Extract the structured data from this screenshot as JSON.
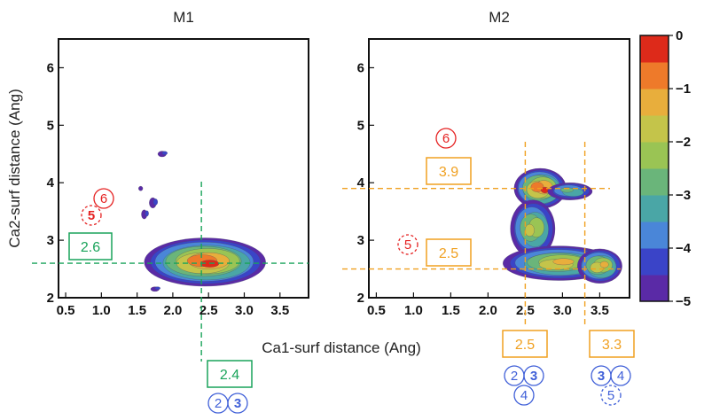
{
  "colors": {
    "green": "#19a35a",
    "orange": "#f0a020",
    "red": "#e52222",
    "blue": "#3f5fd8",
    "scale": [
      "#5a2aa6",
      "#3a44c8",
      "#4a86d8",
      "#4aa6a6",
      "#6ab57a",
      "#9ac454",
      "#c4c44a",
      "#e8ae3c",
      "#ee7a2a",
      "#dd2a1a"
    ]
  },
  "chart_data": [
    {
      "type": "heatmap",
      "title": "M1",
      "xlabel": "Ca1-surf distance (Ang)",
      "ylabel": "Ca2-surf distance (Ang)",
      "xlim": [
        0.4,
        3.9
      ],
      "ylim": [
        2.0,
        6.5
      ],
      "xticks": [
        "0.5",
        "1.0",
        "1.5",
        "2.0",
        "2.5",
        "3.0",
        "3.5"
      ],
      "yticks": [
        "2",
        "3",
        "4",
        "5",
        "6"
      ],
      "regions": [
        {
          "cx": 2.45,
          "cy": 2.62,
          "rx": 0.85,
          "ry": 0.42,
          "peak": 0
        },
        {
          "cx": 1.85,
          "cy": 4.5,
          "rx": 0.06,
          "ry": 0.05,
          "peak": -4.5
        },
        {
          "cx": 1.72,
          "cy": 3.65,
          "rx": 0.05,
          "ry": 0.09,
          "peak": -4.5
        },
        {
          "cx": 1.6,
          "cy": 3.45,
          "rx": 0.04,
          "ry": 0.08,
          "peak": -4.5
        },
        {
          "cx": 1.55,
          "cy": 3.9,
          "rx": 0.03,
          "ry": 0.04,
          "peak": -4.8
        },
        {
          "cx": 1.75,
          "cy": 2.15,
          "rx": 0.06,
          "ry": 0.04,
          "peak": -4.5
        }
      ],
      "guides": {
        "x": 2.4,
        "y": 2.6
      },
      "annotations": [
        {
          "text": "2.6",
          "color": "green",
          "axis": "y"
        },
        {
          "text": "2.4",
          "color": "green",
          "axis": "x"
        },
        {
          "text": "6",
          "color": "red",
          "style": "solid"
        },
        {
          "text": "5",
          "color": "red",
          "style": "dashed",
          "bold": true
        },
        {
          "text": "2",
          "color": "blue"
        },
        {
          "text": "3",
          "color": "blue",
          "bold": true
        }
      ]
    },
    {
      "type": "heatmap",
      "title": "M2",
      "xlim": [
        0.4,
        3.9
      ],
      "ylim": [
        2.0,
        6.5
      ],
      "xticks": [
        "0.5",
        "1.0",
        "1.5",
        "2.0",
        "2.5",
        "3.0",
        "3.5"
      ],
      "yticks": [
        "2",
        "3",
        "4",
        "5",
        "6"
      ],
      "regions": [
        {
          "cx": 2.7,
          "cy": 3.9,
          "rx": 0.35,
          "ry": 0.35,
          "peak": 0
        },
        {
          "cx": 2.6,
          "cy": 3.2,
          "rx": 0.3,
          "ry": 0.5,
          "peak": -1.5
        },
        {
          "cx": 2.95,
          "cy": 2.6,
          "rx": 0.75,
          "ry": 0.3,
          "peak": -1
        },
        {
          "cx": 3.5,
          "cy": 2.55,
          "rx": 0.3,
          "ry": 0.3,
          "peak": -1
        },
        {
          "cx": 3.1,
          "cy": 3.85,
          "rx": 0.3,
          "ry": 0.15,
          "peak": -3
        }
      ],
      "guides": {
        "x": [
          2.5,
          3.3
        ],
        "y": [
          3.9,
          2.5
        ]
      },
      "annotations": [
        {
          "text": "6",
          "color": "red",
          "style": "solid"
        },
        {
          "text": "3.9",
          "color": "orange",
          "axis": "y"
        },
        {
          "text": "5",
          "color": "red",
          "style": "dashed"
        },
        {
          "text": "2.5",
          "color": "orange",
          "axis": "y"
        },
        {
          "text": "2.5",
          "color": "orange",
          "axis": "x"
        },
        {
          "text": "3.3",
          "color": "orange",
          "axis": "x"
        },
        {
          "text": "2",
          "color": "blue"
        },
        {
          "text": "3",
          "color": "blue",
          "bold": true
        },
        {
          "text": "4",
          "color": "blue"
        },
        {
          "text": "3",
          "color": "blue",
          "bold": true
        },
        {
          "text": "4",
          "color": "blue"
        },
        {
          "text": "5",
          "color": "blue",
          "style": "dashed"
        }
      ]
    }
  ],
  "colorbar": {
    "range": [
      -5,
      0
    ],
    "labels": [
      "0",
      "−1",
      "−2",
      "−3",
      "−4",
      "−5"
    ]
  }
}
